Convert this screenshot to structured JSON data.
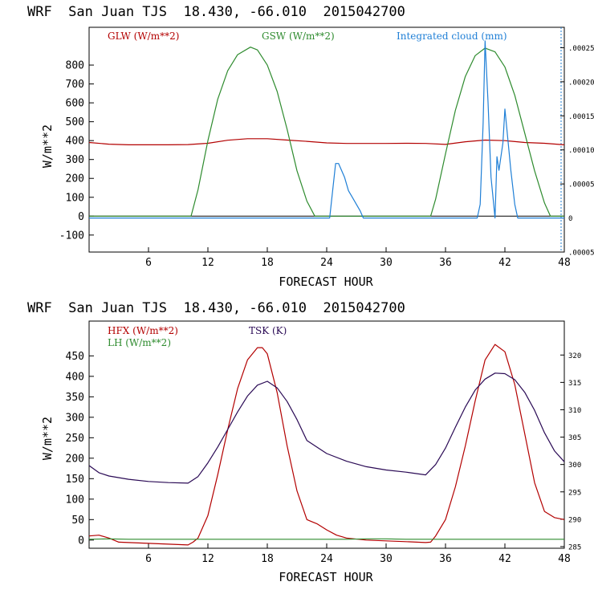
{
  "chart_data": [
    {
      "type": "line",
      "title": "WRF  San Juan TJS  18.430, -66.010  2015042700",
      "xlabel": "FORECAST HOUR",
      "ylabel": "W/m**2",
      "xlim": [
        0,
        48
      ],
      "ylim": [
        -190,
        1000
      ],
      "x_ticks": [
        6,
        12,
        18,
        24,
        30,
        36,
        42,
        48
      ],
      "y_ticks": [
        -100,
        0,
        100,
        200,
        300,
        400,
        500,
        600,
        700,
        800
      ],
      "y2lim": [
        -5e-05,
        0.00028
      ],
      "y2_ticks": [
        {
          "value": -5e-05,
          "label": ".00005"
        },
        {
          "value": 0,
          "label": "0"
        },
        {
          "value": 5e-05,
          "label": ".00005"
        },
        {
          "value": 0.0001,
          "label": ".00010"
        },
        {
          "value": 0.00015,
          "label": ".00015"
        },
        {
          "value": 0.0002,
          "label": ".00020"
        },
        {
          "value": 0.00025,
          "label": ".00025"
        }
      ],
      "series": [
        {
          "name": "GLW (W/m**2)",
          "color": "#b30000",
          "axis": "left",
          "x": [
            0,
            2,
            4,
            6,
            8,
            10,
            12,
            14,
            16,
            18,
            20,
            22,
            24,
            26,
            28,
            30,
            32,
            34,
            36,
            38,
            40,
            42,
            44,
            46,
            48
          ],
          "y": [
            390,
            381,
            378,
            378,
            378,
            379,
            386,
            402,
            410,
            410,
            403,
            396,
            388,
            385,
            385,
            385,
            386,
            385,
            380,
            394,
            403,
            400,
            390,
            386,
            378
          ]
        },
        {
          "name": "GSW (W/m**2)",
          "color": "#2e8b2e",
          "axis": "left",
          "x": [
            0,
            10.3,
            11,
            12,
            13,
            14,
            15,
            16.3,
            17,
            18,
            19,
            20,
            21,
            22,
            22.8,
            34.5,
            35,
            36,
            37,
            38,
            39,
            40,
            41,
            42,
            43,
            44,
            45,
            46,
            46.6,
            48
          ],
          "y": [
            0,
            0,
            140,
            400,
            620,
            770,
            855,
            895,
            880,
            800,
            660,
            460,
            240,
            80,
            0,
            0,
            90,
            330,
            560,
            740,
            850,
            890,
            870,
            790,
            640,
            440,
            240,
            70,
            0,
            0
          ]
        },
        {
          "name": "Integrated cloud (mm)",
          "color": "#1f7fd6",
          "axis": "right",
          "x": [
            0,
            24.3,
            24.6,
            24.9,
            25.2,
            25.5,
            25.8,
            26.2,
            26.6,
            27,
            27.4,
            27.7,
            39.2,
            39.5,
            39.8,
            40,
            40.3,
            40.6,
            41,
            41.2,
            41.4,
            41.8,
            42,
            42.2,
            42.6,
            43,
            43.3,
            48
          ],
          "y": [
            0,
            0,
            4e-05,
            8e-05,
            8e-05,
            7e-05,
            6e-05,
            4e-05,
            3e-05,
            2e-05,
            1e-05,
            0,
            0,
            2e-05,
            0.00014,
            0.00026,
            0.00017,
            6e-05,
            0,
            9e-05,
            7e-05,
            0.00011,
            0.00016,
            0.00013,
            7e-05,
            2e-05,
            0,
            0
          ]
        }
      ]
    },
    {
      "type": "line",
      "title": "WRF  San Juan TJS  18.430, -66.010  2015042700",
      "xlabel": "FORECAST HOUR",
      "ylabel": "W/m**2",
      "xlim": [
        0,
        48
      ],
      "ylim": [
        -20,
        535
      ],
      "x_ticks": [
        6,
        12,
        18,
        24,
        30,
        36,
        42,
        48
      ],
      "y_ticks": [
        0,
        50,
        100,
        150,
        200,
        250,
        300,
        350,
        400,
        450
      ],
      "y2lim": [
        284.7,
        326.2
      ],
      "y2_ticks": [
        285,
        290,
        295,
        300,
        305,
        310,
        315,
        320
      ],
      "series": [
        {
          "name": "HFX (W/m**2)",
          "color": "#b30000",
          "axis": "left",
          "x": [
            0,
            1,
            2,
            3,
            4,
            6,
            8,
            10,
            10.5,
            11,
            12,
            13,
            14,
            15,
            16,
            17,
            17.5,
            18,
            19,
            20,
            21,
            22,
            22.5,
            23,
            24,
            25,
            26,
            28,
            30,
            32,
            34,
            34.5,
            35,
            36,
            37,
            38,
            39,
            40,
            41,
            42,
            43,
            44,
            45,
            46,
            47,
            48
          ],
          "y": [
            10,
            12,
            5,
            -5,
            -6,
            -8,
            -10,
            -12,
            -5,
            5,
            60,
            160,
            270,
            370,
            440,
            470,
            470,
            455,
            360,
            230,
            120,
            50,
            45,
            40,
            25,
            12,
            5,
            0,
            -2,
            -4,
            -6,
            -5,
            10,
            50,
            130,
            230,
            340,
            440,
            478,
            460,
            380,
            260,
            140,
            70,
            55,
            50
          ]
        },
        {
          "name": "LH (W/m**2)",
          "color": "#2e8b2e",
          "axis": "left",
          "x": [
            0,
            2,
            4,
            6,
            8,
            10,
            12,
            14,
            16,
            18,
            20,
            22,
            24,
            26,
            28,
            30,
            32,
            34,
            36,
            38,
            40,
            42,
            44,
            46,
            48
          ],
          "y": [
            2,
            3,
            2,
            2,
            2,
            2,
            2,
            2,
            2,
            2,
            2,
            2,
            2,
            2,
            3,
            3,
            2,
            2,
            2,
            2,
            2,
            2,
            2,
            2,
            2
          ]
        },
        {
          "name": "TSK (K)",
          "color": "#2a0a55",
          "axis": "right",
          "x": [
            0,
            1,
            2,
            4,
            6,
            8,
            10,
            11,
            12,
            13,
            14,
            15,
            16,
            17,
            18,
            19,
            20,
            21,
            22,
            24,
            26,
            28,
            30,
            32,
            34,
            35,
            36,
            37,
            38,
            39,
            40,
            41,
            42,
            43,
            44,
            45,
            46,
            47,
            48
          ],
          "y": [
            299.8,
            298.5,
            297.9,
            297.3,
            296.9,
            296.7,
            296.6,
            297.8,
            300.3,
            303.2,
            306.4,
            309.6,
            312.5,
            314.5,
            315.2,
            314.0,
            311.5,
            308.2,
            304.4,
            302.0,
            300.6,
            299.6,
            299.0,
            298.6,
            298.1,
            300.0,
            303.0,
            306.8,
            310.5,
            313.6,
            315.6,
            316.7,
            316.6,
            315.5,
            313.2,
            309.9,
            305.8,
            302.5,
            300.5
          ]
        }
      ]
    }
  ]
}
